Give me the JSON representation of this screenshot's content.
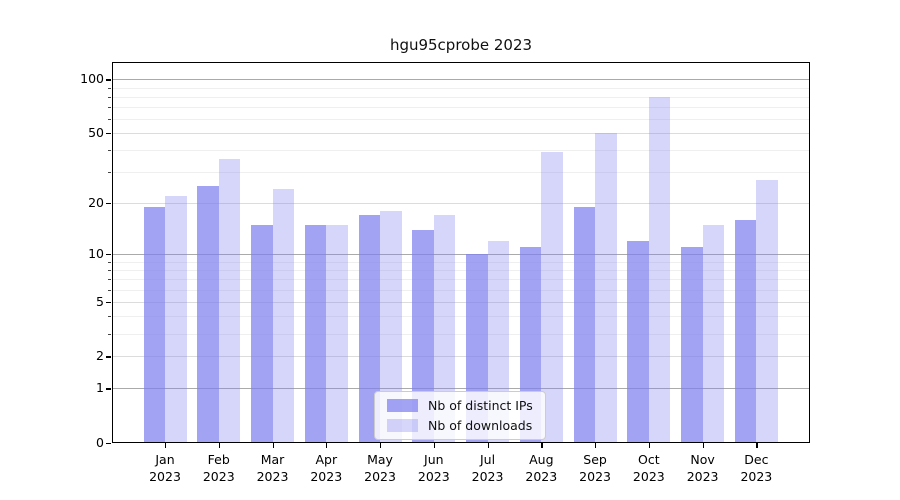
{
  "chart_data": {
    "type": "bar",
    "title": "hgu95cprobe 2023",
    "year": "2023",
    "categories": [
      "Jan",
      "Feb",
      "Mar",
      "Apr",
      "May",
      "Jun",
      "Jul",
      "Aug",
      "Sep",
      "Oct",
      "Nov",
      "Dec"
    ],
    "series": [
      {
        "name": "Nb of distinct IPs",
        "color": "#8080f0",
        "alpha": 0.72,
        "values": [
          19,
          25,
          15,
          15,
          17,
          14,
          10,
          11,
          19,
          12,
          11,
          16
        ]
      },
      {
        "name": "Nb of downloads",
        "color": "#8080f0",
        "alpha": 0.32,
        "values": [
          22,
          36,
          24,
          15,
          18,
          17,
          12,
          39,
          50,
          80,
          15,
          27
        ]
      }
    ],
    "xlabel": "",
    "ylabel": "",
    "y_scale": "log1p",
    "y_ticks": [
      0,
      1,
      2,
      5,
      10,
      20,
      50,
      100
    ],
    "y_minor_ticks": [
      3,
      4,
      6,
      7,
      8,
      9,
      30,
      40,
      60,
      70,
      80,
      90
    ],
    "ylim": [
      0,
      125
    ],
    "grid": true,
    "gridline_colors": {
      "decade": "#aaaaaa",
      "major": "#dcdcdc",
      "minor": "#efefef"
    },
    "legend": {
      "position": "lower center"
    }
  }
}
